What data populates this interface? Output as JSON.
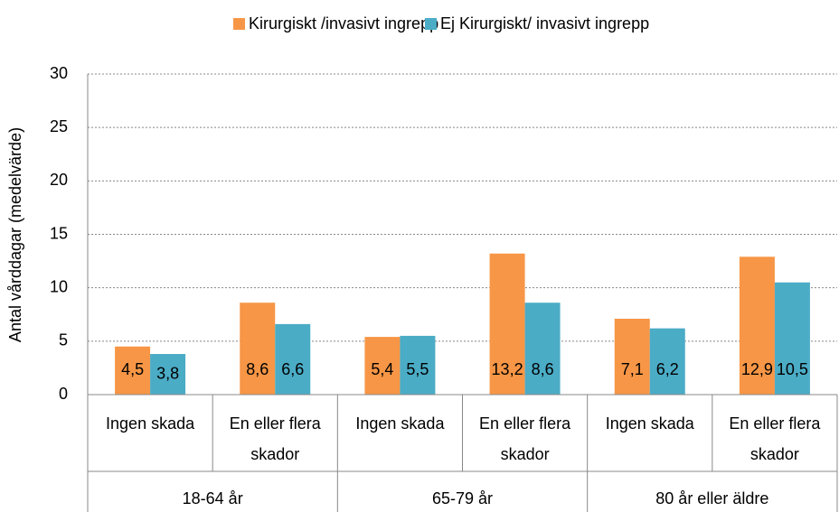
{
  "chart_data": {
    "type": "bar",
    "y_axis_label": "Antal vårddagar (medelvärde)",
    "categories": [
      "Ingen skada",
      "En eller flera skador",
      "Ingen skada",
      "En eller flera skador",
      "Ingen skada",
      "En eller flera skador"
    ],
    "category_groups": [
      "18-64 år",
      "65-79 år",
      "80 år eller äldre"
    ],
    "series": [
      {
        "name": "Kirurgiskt /invasivt ingrepp",
        "color": "#f79646",
        "values": [
          4.5,
          8.6,
          5.4,
          13.2,
          7.1,
          12.9
        ],
        "value_labels": [
          "4,5",
          "8,6",
          "5,4",
          "13,2",
          "7,1",
          "12,9"
        ]
      },
      {
        "name": "Ej Kirurgiskt/ invasivt ingrepp",
        "color": "#4bacc6",
        "values": [
          3.8,
          6.6,
          5.5,
          8.6,
          6.2,
          10.5
        ],
        "value_labels": [
          "3,8",
          "6,6",
          "5,5",
          "8,6",
          "6,2",
          "10,5"
        ]
      }
    ],
    "ylim": [
      0,
      30
    ],
    "yticks": [
      0,
      5,
      10,
      15,
      20,
      25,
      30
    ],
    "grid": true,
    "legend": "top"
  }
}
